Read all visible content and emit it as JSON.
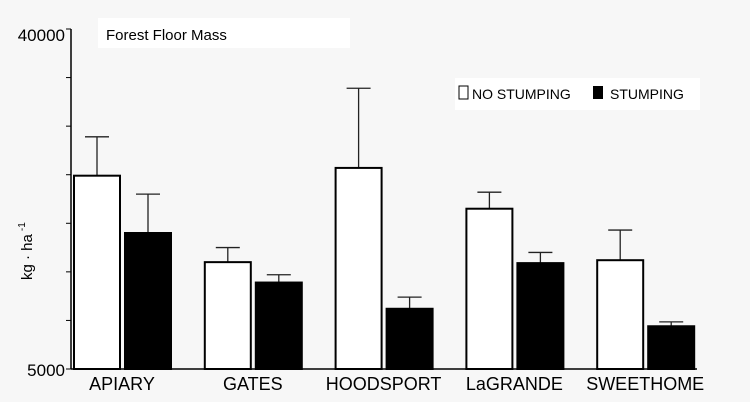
{
  "chart_data": {
    "type": "bar",
    "title": "Forest Floor Mass",
    "xlabel": "",
    "ylabel": "kg · ha",
    "ylabel_superscript": "-1",
    "ylim": [
      5000,
      40000
    ],
    "yticks_labeled": [
      "5000",
      "40000"
    ],
    "minor_tick_step": 5000,
    "categories": [
      "APIARY",
      "GATES",
      "HOODSPORT",
      "LaGRANDE",
      "SWEETHOME"
    ],
    "series": [
      {
        "name": "NO STUMPING",
        "fill": "#ffffff",
        "values": [
          24900,
          16000,
          25700,
          21500,
          16200
        ],
        "error_upper": [
          28900,
          17500,
          33900,
          23200,
          19300
        ]
      },
      {
        "name": "STUMPING",
        "fill": "#000000",
        "values": [
          19000,
          13900,
          11200,
          15900,
          9400
        ],
        "error_upper": [
          23000,
          14700,
          12400,
          17000,
          9850
        ]
      }
    ],
    "legend_placement": "top-right",
    "grid": false
  }
}
